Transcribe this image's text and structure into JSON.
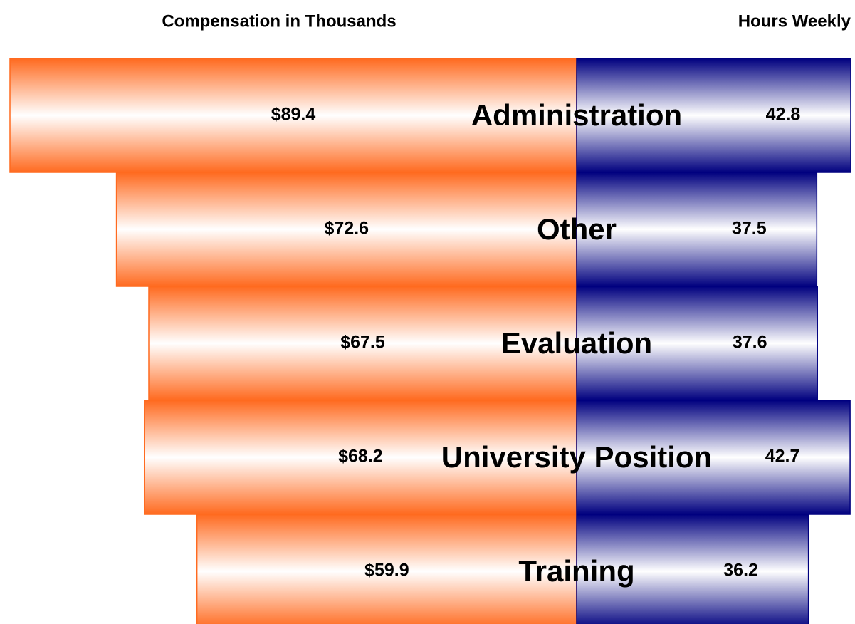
{
  "chart_data": {
    "type": "butterfly-bar",
    "categories": [
      "Administration",
      "Other",
      "Evaluation",
      "University Position",
      "Training"
    ],
    "series": [
      {
        "name": "Compensation in Thousands",
        "color": "#ff6a1f",
        "values": [
          89.4,
          72.6,
          67.5,
          68.2,
          59.9
        ],
        "value_labels": [
          "$89.4",
          "$72.6",
          "$67.5",
          "$68.2",
          "$59.9"
        ]
      },
      {
        "name": "Hours Weekly",
        "color": "#00007f",
        "values": [
          42.8,
          37.5,
          37.6,
          42.7,
          36.2
        ]
      }
    ]
  }
}
